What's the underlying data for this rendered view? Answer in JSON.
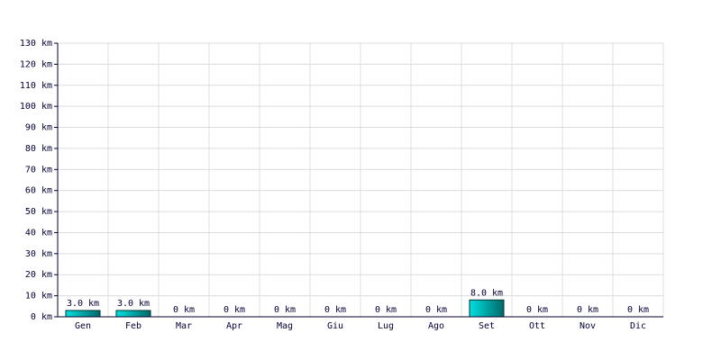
{
  "chart_data": {
    "type": "bar",
    "categories": [
      "Gen",
      "Feb",
      "Mar",
      "Apr",
      "Mag",
      "Giu",
      "Lug",
      "Ago",
      "Set",
      "Ott",
      "Nov",
      "Dic"
    ],
    "values": [
      3,
      3,
      0,
      0,
      0,
      0,
      0,
      0,
      8,
      0,
      0,
      0
    ],
    "value_labels": [
      "3.0 km",
      "3.0 km",
      "0 km",
      "0 km",
      "0 km",
      "0 km",
      "0 km",
      "0 km",
      "8.0 km",
      "0 km",
      "0 km",
      "0 km"
    ],
    "color": "#00e0e0",
    "ylim": [
      0,
      130
    ],
    "yticks": [
      {
        "value": 0,
        "label": "0 km"
      },
      {
        "value": 10,
        "label": "10 km"
      },
      {
        "value": 20,
        "label": "20 km"
      },
      {
        "value": 30,
        "label": "30 km"
      },
      {
        "value": 40,
        "label": "40 km"
      },
      {
        "value": 50,
        "label": "50 km"
      },
      {
        "value": 60,
        "label": "60 km"
      },
      {
        "value": 70,
        "label": "70 km"
      },
      {
        "value": 80,
        "label": "80 km"
      },
      {
        "value": 90,
        "label": "90 km"
      },
      {
        "value": 100,
        "label": "100 km"
      },
      {
        "value": 110,
        "label": "110 km"
      },
      {
        "value": 120,
        "label": "120 km"
      },
      {
        "value": 130,
        "label": "130 km"
      }
    ],
    "grid": true
  }
}
